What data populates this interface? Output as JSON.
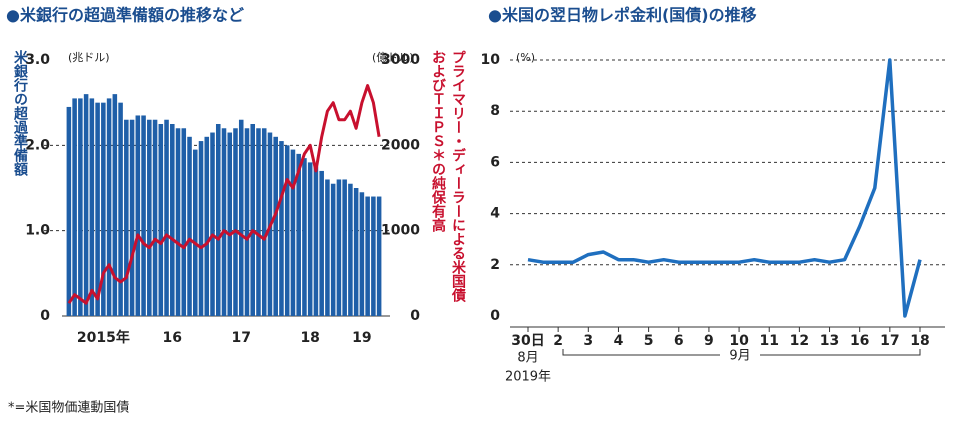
{
  "chart_data": [
    {
      "type": "bar",
      "title": "●米銀行の超過準備額の推移など",
      "ylabel": "米銀行の超過準備額",
      "yunit": "(兆ドル)",
      "y2label": [
        "プライマリー・ディーラーによる米国債",
        "およびＴＩＰＳ＊の純保有高"
      ],
      "y2unit": "(億ドル)",
      "categories": [
        null,
        null,
        null,
        null,
        null,
        null,
        "2015年",
        null,
        null,
        null,
        null,
        null,
        null,
        null,
        null,
        null,
        null,
        null,
        "16",
        null,
        null,
        null,
        null,
        null,
        null,
        null,
        null,
        null,
        null,
        null,
        "17",
        null,
        null,
        null,
        null,
        null,
        null,
        null,
        null,
        null,
        null,
        null,
        "18",
        null,
        null,
        null,
        null,
        null,
        null,
        null,
        null,
        "19",
        null,
        null,
        null
      ],
      "series": [
        {
          "color": "#1f5fa8",
          "values": [
            2.45,
            2.55,
            2.55,
            2.6,
            2.55,
            2.5,
            2.5,
            2.55,
            2.6,
            2.5,
            2.3,
            2.3,
            2.35,
            2.35,
            2.3,
            2.3,
            2.25,
            2.3,
            2.25,
            2.2,
            2.2,
            2.1,
            1.95,
            2.05,
            2.1,
            2.15,
            2.25,
            2.2,
            2.15,
            2.2,
            2.3,
            2.2,
            2.25,
            2.2,
            2.2,
            2.15,
            2.1,
            2.05,
            2.0,
            1.95,
            1.9,
            1.85,
            1.8,
            1.75,
            1.7,
            1.6,
            1.55,
            1.6,
            1.6,
            1.55,
            1.5,
            1.45,
            1.4,
            1.4,
            1.4
          ]
        },
        {
          "type": "line",
          "axis": "y2",
          "color": "#c8102e",
          "values": [
            150,
            250,
            200,
            150,
            300,
            200,
            500,
            600,
            450,
            400,
            450,
            700,
            950,
            850,
            800,
            900,
            850,
            950,
            900,
            850,
            800,
            900,
            850,
            800,
            850,
            950,
            900,
            1000,
            950,
            1000,
            950,
            900,
            1000,
            950,
            900,
            1050,
            1200,
            1400,
            1600,
            1500,
            1700,
            1900,
            2000,
            1700,
            2100,
            2400,
            2500,
            2300,
            2300,
            2400,
            2200,
            2500,
            2700,
            2500,
            2100
          ]
        }
      ],
      "ylim": [
        0,
        3
      ],
      "yticks": [
        0,
        {
          "value": 1,
          "label": "1.0"
        },
        {
          "value": 2,
          "label": "2.0"
        },
        {
          "value": 3,
          "label": "3.0"
        }
      ],
      "y2lim": [
        0,
        3000
      ],
      "y2ticks": [
        0,
        1000,
        2000,
        3000
      ],
      "grid": true
    },
    {
      "type": "line",
      "title": "●米国の翌日物レポ金利(国債)の推移",
      "yunit": "(%)",
      "categories": [
        "30日",
        null,
        "2",
        null,
        "3",
        null,
        "4",
        null,
        "5",
        null,
        "6",
        null,
        "9",
        null,
        "10",
        null,
        "11",
        null,
        "12",
        null,
        "13",
        null,
        "16",
        null,
        "17",
        null,
        "18"
      ],
      "values": [
        2.2,
        2.1,
        2.1,
        2.1,
        2.4,
        2.5,
        2.2,
        2.2,
        2.1,
        2.2,
        2.1,
        2.1,
        2.1,
        2.1,
        2.1,
        2.2,
        2.1,
        2.1,
        2.1,
        2.2,
        2.1,
        2.2,
        3.5,
        5,
        10,
        0,
        2.2
      ],
      "color": "#1f6fbf",
      "ylim": [
        0,
        10
      ],
      "yticks": [
        0,
        2,
        4,
        6,
        8,
        10
      ],
      "grid": true,
      "annotations": [
        "8月",
        "2019年",
        "9月"
      ]
    }
  ],
  "footnote": "*=米国物価連動国債"
}
